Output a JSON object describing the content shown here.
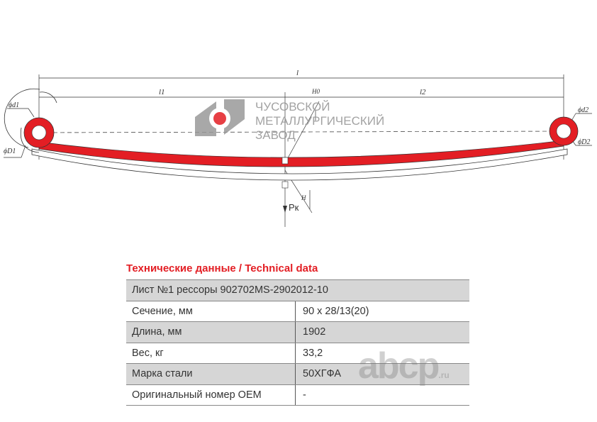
{
  "drawing": {
    "dim_l": "l",
    "dim_l1": "l1",
    "dim_l2": "l2",
    "label_d1": "ϕd1",
    "label_D1": "ϕD1",
    "label_d2": "ϕd2",
    "label_D2": "ϕD2",
    "label_pk": "Pк",
    "label_h": "H",
    "label_h0": "H0",
    "leaf_color": "#e31e24"
  },
  "logo": {
    "line1": "ЧУСОВСКОЙ",
    "line2": "МЕТАЛЛУРГИЧЕСКИЙ",
    "line3": "ЗАВОД",
    "mark_color": "#e31e24"
  },
  "table": {
    "title": "Технические данные / Technical data",
    "header": "Лист №1 рессоры 902702MS-2902012-10",
    "rows": [
      {
        "label": "Сечение, мм",
        "value": "90 x 28/13(20)"
      },
      {
        "label": "Длина, мм",
        "value": "1902"
      },
      {
        "label": "Вес, кг",
        "value": "33,2"
      },
      {
        "label": "Марка стали",
        "value": "50ХГФА"
      },
      {
        "label": "Оригинальный номер OEM",
        "value": "-"
      }
    ]
  },
  "watermark": {
    "text": "abcp",
    "suffix": ".ru"
  }
}
